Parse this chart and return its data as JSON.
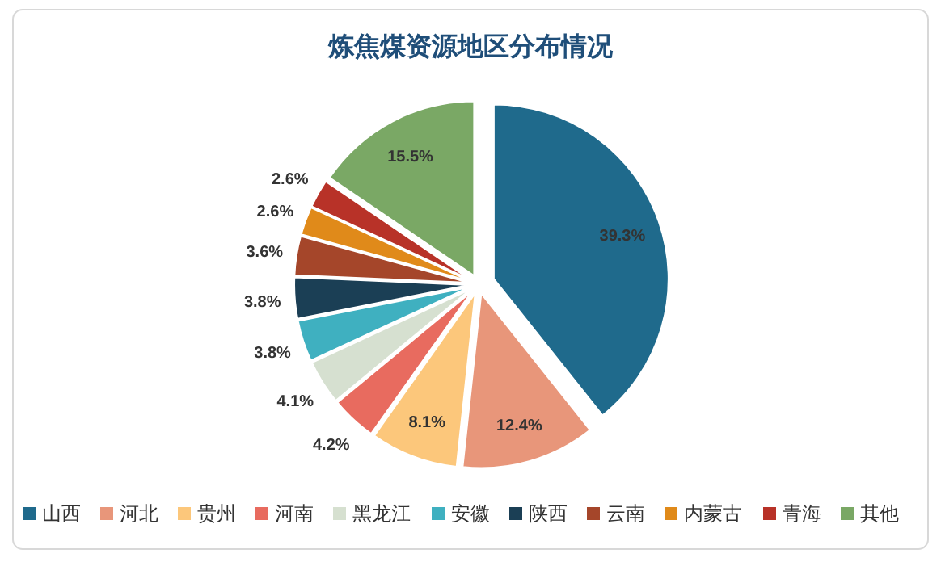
{
  "chart_data": {
    "type": "pie",
    "title": "炼焦煤资源地区分布情况",
    "categories": [
      "山西",
      "河北",
      "贵州",
      "河南",
      "黑龙江",
      "安徽",
      "陕西",
      "云南",
      "内蒙古",
      "青海",
      "其他"
    ],
    "values": [
      39.3,
      12.4,
      8.1,
      4.2,
      4.1,
      3.8,
      3.8,
      3.6,
      2.6,
      2.6,
      15.5
    ],
    "value_labels": [
      "39.3%",
      "12.4%",
      "8.1%",
      "4.2%",
      "4.1%",
      "3.8%",
      "3.8%",
      "3.6%",
      "2.6%",
      "2.6%",
      "15.5%"
    ],
    "colors": [
      "#1f6a8c",
      "#e8967a",
      "#fcc77b",
      "#e86b5f",
      "#d6e0d0",
      "#3fb0c0",
      "#1b3f55",
      "#a5462a",
      "#e08a1a",
      "#b83228",
      "#7aa865"
    ],
    "legend": "bottom"
  }
}
